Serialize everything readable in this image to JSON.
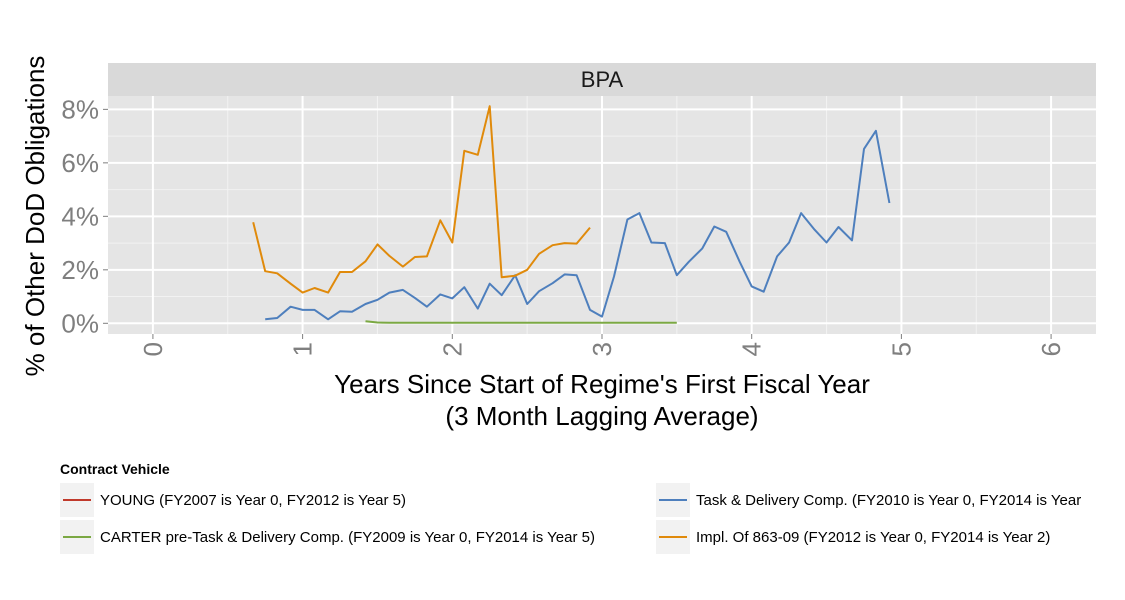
{
  "chart_data": {
    "type": "line",
    "panel": "BPA",
    "xlabel": "Years Since Start of Regime's First Fiscal Year",
    "xlabel_line2": "(3 Month Lagging Average)",
    "ylabel": "% of Other DoD Obligations",
    "xlim": [
      -0.3,
      6.3
    ],
    "ylim": [
      -0.4,
      8.5
    ],
    "x_ticks": [
      0,
      1,
      2,
      3,
      4,
      5,
      6
    ],
    "x_tick_labels": [
      "0",
      "1",
      "2",
      "3",
      "4",
      "5",
      "6"
    ],
    "y_ticks": [
      0,
      2,
      4,
      6,
      8
    ],
    "y_tick_labels": [
      "0%",
      "2%",
      "4%",
      "6%",
      "8%"
    ],
    "grid": true,
    "legend_position": "bottom",
    "legend_title": "Contract Vehicle",
    "series": [
      {
        "name": "YOUNG (FY2007 is Year 0, FY2012 is Year 5)",
        "color": "#c0392b",
        "x": [],
        "y": []
      },
      {
        "name": "CARTER pre-Task & Delivery Comp. (FY2009 is Year 0, FY2014 is Year 5)",
        "color": "#7ba843",
        "x": [
          1.42,
          1.5,
          1.58,
          1.67,
          1.75,
          1.83,
          1.92,
          2.0,
          2.08,
          2.17,
          2.25,
          2.33,
          2.42,
          2.5,
          2.58,
          2.67,
          2.75,
          2.83,
          2.92,
          3.0,
          3.08,
          3.17,
          3.25,
          3.33,
          3.42,
          3.5
        ],
        "y": [
          0.08,
          0.03,
          0.02,
          0.02,
          0.02,
          0.02,
          0.02,
          0.02,
          0.02,
          0.02,
          0.02,
          0.02,
          0.02,
          0.02,
          0.02,
          0.02,
          0.02,
          0.02,
          0.02,
          0.02,
          0.02,
          0.02,
          0.02,
          0.02,
          0.02,
          0.02
        ]
      },
      {
        "name": "Task & Delivery Comp. (FY2010 is Year 0, FY2014 is Year",
        "color": "#4e7fbd",
        "x": [
          0.75,
          0.83,
          0.92,
          1.0,
          1.08,
          1.17,
          1.25,
          1.33,
          1.42,
          1.5,
          1.58,
          1.67,
          1.75,
          1.83,
          1.92,
          2.0,
          2.08,
          2.17,
          2.25,
          2.33,
          2.42,
          2.5,
          2.58,
          2.67,
          2.75,
          2.83,
          2.92,
          3.0,
          3.08,
          3.17,
          3.25,
          3.33,
          3.42,
          3.5,
          3.58,
          3.67,
          3.75,
          3.83,
          3.92,
          4.0,
          4.08,
          4.17,
          4.25,
          4.33,
          4.42,
          4.5,
          4.58,
          4.67,
          4.75,
          4.83,
          4.92
        ],
        "y": [
          0.15,
          0.2,
          0.62,
          0.5,
          0.5,
          0.15,
          0.45,
          0.43,
          0.72,
          0.88,
          1.15,
          1.25,
          0.95,
          0.62,
          1.08,
          0.93,
          1.35,
          0.55,
          1.48,
          1.05,
          1.8,
          0.72,
          1.2,
          1.5,
          1.83,
          1.8,
          0.5,
          0.25,
          1.75,
          3.88,
          4.12,
          3.02,
          3.0,
          1.8,
          2.3,
          2.8,
          3.62,
          3.42,
          2.3,
          1.38,
          1.18,
          2.5,
          3.02,
          4.12,
          3.5,
          3.02,
          3.6,
          3.1,
          6.52,
          7.2,
          4.5
        ]
      },
      {
        "name": "Impl. Of 863-09 (FY2012 is Year 0, FY2014 is Year 2)",
        "color": "#e08a0b",
        "x": [
          0.67,
          0.75,
          0.83,
          0.92,
          1.0,
          1.08,
          1.17,
          1.25,
          1.33,
          1.42,
          1.5,
          1.58,
          1.67,
          1.75,
          1.83,
          1.92,
          2.0,
          2.08,
          2.17,
          2.25,
          2.33,
          2.42,
          2.5,
          2.58,
          2.67,
          2.75,
          2.83,
          2.92
        ],
        "y": [
          3.78,
          1.95,
          1.87,
          1.48,
          1.15,
          1.32,
          1.15,
          1.92,
          1.92,
          2.32,
          2.95,
          2.52,
          2.12,
          2.48,
          2.5,
          3.85,
          3.02,
          6.45,
          6.3,
          8.12,
          1.72,
          1.78,
          2.0,
          2.6,
          2.92,
          3.0,
          2.98,
          3.58
        ]
      }
    ]
  }
}
